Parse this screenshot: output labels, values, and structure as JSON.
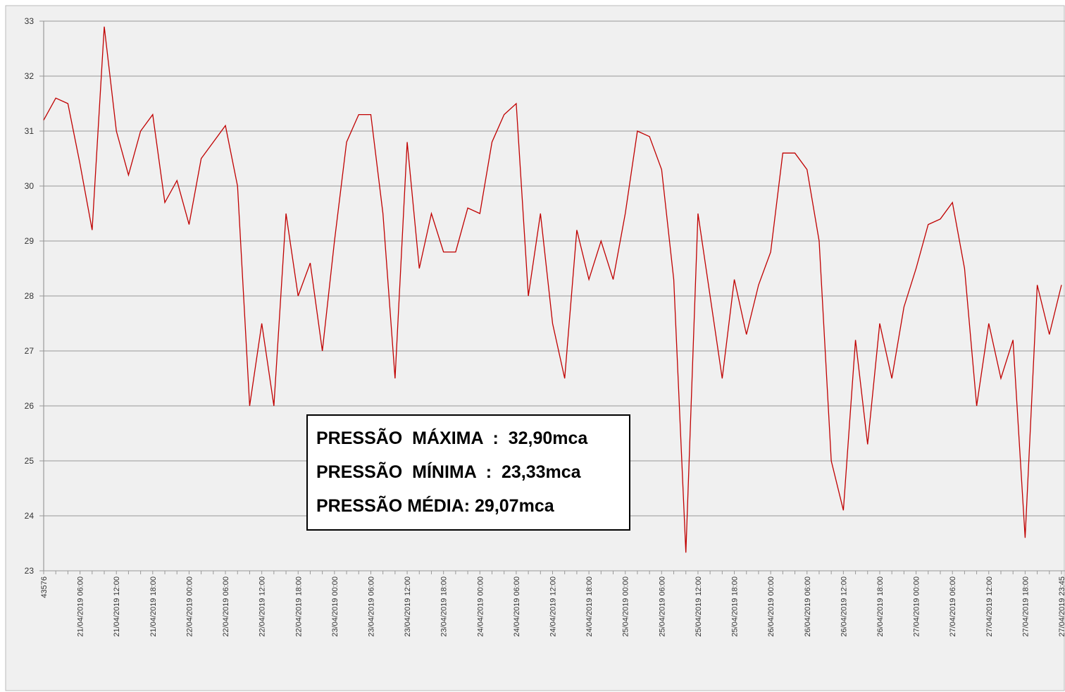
{
  "chart_data": {
    "type": "line",
    "categories": [
      "43576",
      null,
      null,
      "21/04/2019 06:00",
      null,
      null,
      "21/04/2019 12:00",
      null,
      null,
      "21/04/2019 18:00",
      null,
      null,
      "22/04/2019 00:00",
      null,
      null,
      "22/04/2019 06:00",
      null,
      null,
      "22/04/2019 12:00",
      null,
      null,
      "22/04/2019 18:00",
      null,
      null,
      "23/04/2019 00:00",
      null,
      null,
      "23/04/2019 06:00",
      null,
      null,
      "23/04/2019 12:00",
      null,
      null,
      "23/04/2019 18:00",
      null,
      null,
      "24/04/2019 00:00",
      null,
      null,
      "24/04/2019 06:00",
      null,
      null,
      "24/04/2019 12:00",
      null,
      null,
      "24/04/2019 18:00",
      null,
      null,
      "25/04/2019 00:00",
      null,
      null,
      "25/04/2019 06:00",
      null,
      null,
      "25/04/2019 12:00",
      null,
      null,
      "25/04/2019 18:00",
      null,
      null,
      "26/04/2019 00:00",
      null,
      null,
      "26/04/2019 06:00",
      null,
      null,
      "26/04/2019 12:00",
      null,
      null,
      "26/04/2019 18:00",
      null,
      null,
      "27/04/2019 00:00",
      null,
      null,
      "27/04/2019 06:00",
      null,
      null,
      "27/04/2019 12:00",
      null,
      null,
      "27/04/2019 18:00",
      null,
      null,
      "27/04/2019 23:45"
    ],
    "series": [
      {
        "color": "#c00000",
        "values": [
          31.2,
          31.6,
          31.5,
          30.4,
          29.2,
          32.9,
          31.0,
          30.2,
          31.0,
          31.3,
          29.7,
          30.1,
          29.3,
          30.5,
          30.8,
          31.1,
          30.0,
          26.0,
          27.5,
          26.0,
          29.5,
          28.0,
          28.6,
          27.0,
          29.0,
          30.8,
          31.3,
          31.3,
          29.5,
          26.5,
          30.8,
          28.5,
          29.5,
          28.8,
          28.8,
          29.6,
          29.5,
          30.8,
          31.3,
          31.5,
          28.0,
          29.5,
          27.5,
          26.5,
          29.2,
          28.3,
          29.0,
          28.3,
          29.5,
          31.0,
          30.9,
          30.3,
          28.3,
          23.33,
          29.5,
          28.0,
          26.5,
          28.3,
          27.3,
          28.2,
          28.8,
          30.6,
          30.6,
          30.3,
          29.0,
          25.0,
          24.1,
          27.2,
          25.3,
          27.5,
          26.5,
          27.8,
          28.5,
          29.3,
          29.4,
          29.7,
          28.5,
          26.0,
          27.5,
          26.5,
          27.2,
          23.6,
          28.2,
          27.3,
          28.2
        ]
      }
    ],
    "ylim": [
      23,
      33
    ],
    "yticks": [
      23,
      24,
      25,
      26,
      27,
      28,
      29,
      30,
      31,
      32,
      33
    ],
    "grid": true,
    "annotations": [
      "PRESSÃO  MÁXIMA  :  32,90mca",
      "PRESSÃO  MÍNIMA  :  23,33mca",
      "PRESSÃO MÉDIA: 29,07mca"
    ]
  }
}
